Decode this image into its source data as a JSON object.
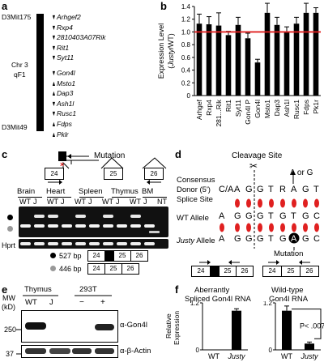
{
  "panel_a": {
    "letter": "a",
    "marker_top": "D3Mit175",
    "marker_bottom": "D3Mit49",
    "chromosome": "Chr 3",
    "band": "qF1",
    "genes": [
      {
        "name": "Arhgef2",
        "dir": "down"
      },
      {
        "name": "Rxp4",
        "dir": "down"
      },
      {
        "name": "2810403A07Rik",
        "dir": "down"
      },
      {
        "name": "Rit1",
        "dir": "down"
      },
      {
        "name": "Syt11",
        "dir": "down"
      },
      {
        "name": "Gon4l",
        "dir": "down"
      },
      {
        "name": "Msto1",
        "dir": "up"
      },
      {
        "name": "Dap3",
        "dir": "up"
      },
      {
        "name": "Ash1l",
        "dir": "down"
      },
      {
        "name": "Rusc1",
        "dir": "down"
      },
      {
        "name": "Fdps",
        "dir": "up"
      },
      {
        "name": "Pklr",
        "dir": "up"
      }
    ]
  },
  "panel_b": {
    "letter": "b",
    "ylabel_line1": "Expression Level",
    "ylabel_line2": "(Justy/WT)"
  },
  "chart_data": {
    "type": "bar",
    "categories": [
      "Arhgef",
      "Rxp4",
      "281...Rik",
      "Rit1",
      "Syt11",
      "Gon4l P",
      "Gon4l",
      "Msto1",
      "Dap3",
      "Ash1l",
      "Rusc1",
      "Fdps",
      "Pk1r"
    ],
    "values": [
      1.13,
      1.12,
      1.1,
      0.95,
      1.11,
      0.9,
      0.52,
      1.3,
      1.11,
      1.0,
      1.13,
      1.3,
      1.3
    ],
    "errors": [
      0.15,
      0.12,
      0.2,
      0.06,
      0.12,
      0.08,
      0.05,
      0.15,
      0.12,
      0.08,
      0.1,
      0.15,
      0.08
    ],
    "ylim": [
      0,
      1.4
    ],
    "yticks": [
      "0",
      "0.2",
      "0.4",
      "0.6",
      "0.8",
      "1.0",
      "1.2",
      "1.4"
    ],
    "reference_line": 1.0,
    "reference_color": "#e02020",
    "bar_color": "#000000"
  },
  "panel_c": {
    "letter": "c",
    "mutation_label": "Mutation",
    "exons": [
      "24",
      "25",
      "26"
    ],
    "tissues": [
      "Brain",
      "Heart",
      "Spleen",
      "Thymus",
      "BM"
    ],
    "lane_labels": [
      "WT",
      "J",
      "WT",
      "J",
      "WT",
      "J",
      "WT",
      "J",
      "WT",
      "J",
      "NT"
    ],
    "loading_label": "Hprt",
    "legend": [
      {
        "size": "527 bp",
        "exons": [
          "24",
          "",
          "25",
          "26"
        ],
        "dot_color": "#000000"
      },
      {
        "size": "446 bp",
        "exons": [
          "24",
          "25",
          "26"
        ],
        "dot_color": "#999999"
      }
    ]
  },
  "panel_d": {
    "letter": "d",
    "title": "Cleavage Site",
    "alt_label": "A or G",
    "row_labels": [
      {
        "l1": "Consensus",
        "l2": "Donor (5')",
        "l3": "Splice Site"
      },
      {
        "l1": "WT Allele"
      },
      {
        "l1": "Justy",
        "l2": " Allele"
      }
    ],
    "consensus": [
      "C/A",
      "A",
      "G",
      "G",
      "T",
      "R",
      "A",
      "G",
      "T"
    ],
    "wt": [
      "A",
      "G",
      "G",
      "G",
      "T",
      "G",
      "T",
      "G",
      "C"
    ],
    "justy": [
      "A",
      "G",
      "G",
      "G",
      "T",
      "G",
      "A",
      "G",
      "C"
    ],
    "mutation_label": "Mutation",
    "exons_left": [
      "24",
      "",
      "25",
      "26"
    ],
    "exons_right": [
      "24",
      "25",
      "26"
    ]
  },
  "panel_e": {
    "letter": "e",
    "mw_label": "MW",
    "kd_label": "(kD)",
    "groups": [
      "Thymus",
      "293T"
    ],
    "lanes": [
      "WT",
      "J",
      "−",
      "+"
    ],
    "mw_marks": [
      "250",
      "37"
    ],
    "antibodies": [
      "α-Gon4l",
      "α-β-Actin"
    ]
  },
  "panel_f": {
    "letter": "f",
    "ylabel_line1": "Relative",
    "ylabel_line2": "Expression",
    "plots": [
      {
        "title1": "Aberrantly",
        "title2": "Spliced Gon4l RNA",
        "categories": [
          "WT",
          "Justy"
        ],
        "values": [
          0.0,
          1.0
        ],
        "errors": [
          0.0,
          0.05
        ],
        "yticks": [
          "0",
          "1.2"
        ],
        "ylim": [
          0,
          1.2
        ]
      },
      {
        "title1": "Wild-type",
        "title2": "Gon4l RNA",
        "categories": [
          "WT",
          "Justy"
        ],
        "values": [
          1.0,
          0.16
        ],
        "errors": [
          0.12,
          0.04
        ],
        "yticks": [
          "0",
          "1.2"
        ],
        "ylim": [
          0,
          1.2
        ],
        "annotation": "P< .007"
      }
    ]
  }
}
